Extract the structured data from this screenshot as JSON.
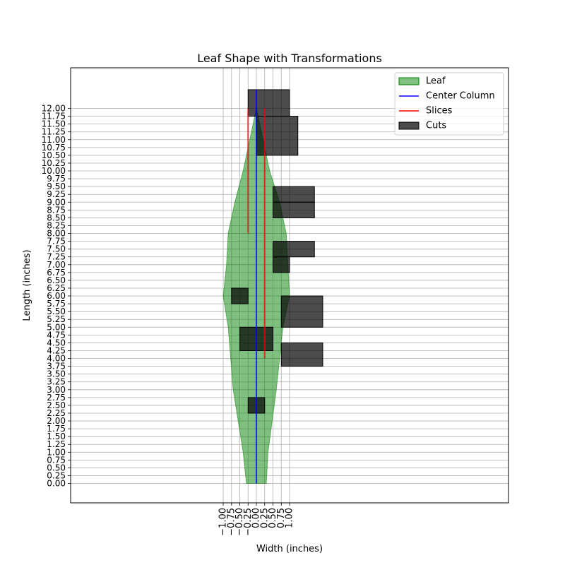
{
  "chart_data": {
    "type": "area",
    "title": "Leaf Shape with Transformations",
    "xlabel": "Width (inches)",
    "ylabel": "Length (inches)",
    "xlim": [
      -5.6,
      7.6
    ],
    "ylim": [
      -0.62,
      13.3
    ],
    "x_ticks": [
      -1.0,
      -0.75,
      -0.5,
      -0.25,
      0.0,
      0.25,
      0.5,
      0.75,
      1.0
    ],
    "x_tick_labels": [
      "−1.00",
      "−0.75",
      "−0.50",
      "−0.25",
      "0.00",
      "0.25",
      "0.50",
      "0.75",
      "1.00"
    ],
    "y_ticks": [
      0,
      0.25,
      0.5,
      0.75,
      1,
      1.25,
      1.5,
      1.75,
      2,
      2.25,
      2.5,
      2.75,
      3,
      3.25,
      3.5,
      3.75,
      4,
      4.25,
      4.5,
      4.75,
      5,
      5.25,
      5.5,
      5.75,
      6,
      6.25,
      6.5,
      6.75,
      7,
      7.25,
      7.5,
      7.75,
      8,
      8.25,
      8.5,
      8.75,
      9,
      9.25,
      9.5,
      9.75,
      10,
      10.25,
      10.5,
      10.75,
      11,
      11.25,
      11.5,
      11.75,
      12
    ],
    "y_tick_labels": [
      "0.00",
      "0.25",
      "0.50",
      "0.75",
      "1.00",
      "1.25",
      "1.50",
      "1.75",
      "2.00",
      "2.25",
      "2.50",
      "2.75",
      "3.00",
      "3.25",
      "3.50",
      "3.75",
      "4.00",
      "4.25",
      "4.50",
      "4.75",
      "5.00",
      "5.25",
      "5.50",
      "5.75",
      "6.00",
      "6.25",
      "6.50",
      "6.75",
      "7.00",
      "7.25",
      "7.50",
      "7.75",
      "8.00",
      "8.25",
      "8.50",
      "8.75",
      "9.00",
      "9.25",
      "9.50",
      "9.75",
      "10.00",
      "10.25",
      "10.50",
      "10.75",
      "11.00",
      "11.25",
      "11.50",
      "11.75",
      "12.00"
    ],
    "grid": true,
    "legend_position": "top-right",
    "legend": [
      {
        "label": "Leaf",
        "kind": "patch",
        "color": "#008000"
      },
      {
        "label": "Center Column",
        "kind": "line",
        "color": "#0000ff"
      },
      {
        "label": "Slices",
        "kind": "line",
        "color": "#ff0000"
      },
      {
        "label": "Cuts",
        "kind": "patch",
        "color": "#000000"
      }
    ],
    "leaf": {
      "color": "#008000",
      "opacity": 0.5,
      "right_edge": [
        [
          0.3,
          0
        ],
        [
          0.35,
          1
        ],
        [
          0.6,
          3
        ],
        [
          0.8,
          5
        ],
        [
          1.0,
          6
        ],
        [
          0.95,
          7
        ],
        [
          0.9,
          8
        ],
        [
          0.7,
          9
        ],
        [
          0.4,
          10
        ],
        [
          0.2,
          11
        ],
        [
          0,
          12
        ]
      ],
      "left_edge": [
        [
          0,
          12
        ],
        [
          -0.2,
          11
        ],
        [
          -0.4,
          10
        ],
        [
          -0.65,
          9
        ],
        [
          -0.85,
          8
        ],
        [
          -0.9,
          7
        ],
        [
          -1.0,
          6
        ],
        [
          -0.85,
          5
        ],
        [
          -0.7,
          3
        ],
        [
          -0.4,
          1
        ],
        [
          -0.3,
          0
        ]
      ]
    },
    "center_column": {
      "color": "#0000ff",
      "x": 0,
      "y_range": [
        0,
        12.6
      ]
    },
    "slices": {
      "color": "#ff0000",
      "segments": [
        {
          "x": -0.25,
          "y": [
            8,
            12
          ]
        },
        {
          "x": 0.25,
          "y": [
            4,
            12
          ]
        }
      ]
    },
    "cuts": {
      "color": "#000000",
      "opacity": 0.7,
      "rects": [
        {
          "x": [
            -0.25,
            0.25
          ],
          "y": [
            2.25,
            2.75
          ]
        },
        {
          "x": [
            -0.5,
            0.5
          ],
          "y": [
            4.25,
            5.0
          ]
        },
        {
          "x": [
            -0.75,
            -0.25
          ],
          "y": [
            5.75,
            6.25
          ]
        },
        {
          "x": [
            0.75,
            2.0
          ],
          "y": [
            3.75,
            4.5
          ]
        },
        {
          "x": [
            0.75,
            2.0
          ],
          "y": [
            5.0,
            6.0
          ]
        },
        {
          "x": [
            0.5,
            1.0
          ],
          "y": [
            6.75,
            7.25
          ]
        },
        {
          "x": [
            0.5,
            1.75
          ],
          "y": [
            7.25,
            7.75
          ]
        },
        {
          "x": [
            0.5,
            1.75
          ],
          "y": [
            8.5,
            9.0
          ]
        },
        {
          "x": [
            0.5,
            1.75
          ],
          "y": [
            9.0,
            9.5
          ]
        },
        {
          "x": [
            0.0,
            1.25
          ],
          "y": [
            10.5,
            11.75
          ]
        },
        {
          "x": [
            -0.25,
            1.0
          ],
          "y": [
            11.75,
            12.6
          ]
        }
      ]
    }
  }
}
